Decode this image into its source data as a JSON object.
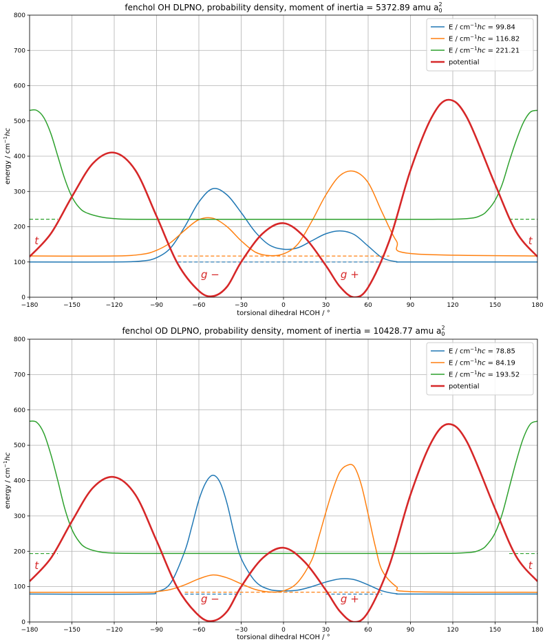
{
  "figure": {
    "description_units": "energy in cm^-1 hc, torsion angle in degrees"
  },
  "chart_data": [
    {
      "type": "line",
      "title_main": "fenchol OH DLPNO, probability density, moment of inertia = 5372.89 amu a",
      "title_sub": "0",
      "title_sup": "2",
      "xlabel": "torsional dihedral HCOH / °",
      "ylabel_main": "energy / cm",
      "ylabel_sup": "−1",
      "ylabel_tail": "hc",
      "xlim": [
        -180,
        180
      ],
      "ylim": [
        0,
        800
      ],
      "xticks": [
        -180,
        -150,
        -120,
        -90,
        -60,
        -30,
        0,
        30,
        60,
        90,
        120,
        150,
        180
      ],
      "xtick_labels": [
        "−180",
        "−150",
        "−120",
        "−90",
        "−60",
        "−30",
        "0",
        "30",
        "60",
        "90",
        "120",
        "150",
        "180"
      ],
      "yticks": [
        0,
        100,
        200,
        300,
        400,
        500,
        600,
        700,
        800
      ],
      "grid": true,
      "legend_position": "top-right",
      "legend": [
        {
          "prefix": "E / cm",
          "sup": "−1",
          "mid": "hc",
          "suffix": " = 99.84",
          "color": "#1f77b4",
          "key": "blue"
        },
        {
          "prefix": "E / cm",
          "sup": "−1",
          "mid": "hc",
          "suffix": " = 116.82",
          "color": "#ff7f0e",
          "key": "orange"
        },
        {
          "prefix": "E / cm",
          "sup": "−1",
          "mid": "hc",
          "suffix": " = 221.21",
          "color": "#2ca02c",
          "key": "green"
        },
        {
          "label": "potential",
          "color": "#d62728",
          "key": "potential"
        }
      ],
      "region_labels": [
        {
          "text": "t",
          "x": -175,
          "y": 150
        },
        {
          "text": "g −",
          "x": -52,
          "y": 55
        },
        {
          "text": "g +",
          "x": 47,
          "y": 55
        },
        {
          "text": "t",
          "x": 175,
          "y": 150
        }
      ],
      "potential": {
        "x": [
          -180,
          -165,
          -150,
          -135,
          -120,
          -105,
          -90,
          -75,
          -60,
          -50,
          -40,
          -30,
          -15,
          0,
          15,
          30,
          40,
          50,
          60,
          75,
          90,
          105,
          117,
          130,
          150,
          165,
          180
        ],
        "y": [
          115,
          180,
          285,
          380,
          410,
          360,
          230,
          95,
          18,
          3,
          30,
          100,
          180,
          210,
          170,
          90,
          30,
          0,
          28,
          160,
          360,
          510,
          560,
          510,
          320,
          185,
          115
        ]
      },
      "levels": [
        {
          "key": "blue",
          "energy": 99.84,
          "dashed_from": -75,
          "dashed_to": 70,
          "x": [
            -180,
            -120,
            -100,
            -90,
            -80,
            -70,
            -60,
            -50,
            -40,
            -30,
            -20,
            -10,
            0,
            10,
            20,
            30,
            40,
            50,
            60,
            70,
            80,
            90,
            180
          ],
          "y": [
            100,
            100,
            103,
            112,
            140,
            200,
            270,
            308,
            290,
            240,
            185,
            148,
            136,
            140,
            160,
            180,
            188,
            178,
            145,
            112,
            101,
            100,
            100
          ]
        },
        {
          "key": "orange",
          "energy": 116.82,
          "dashed_from": -75,
          "dashed_to": 75,
          "x": [
            -180,
            -120,
            -100,
            -90,
            -80,
            -70,
            -60,
            -50,
            -40,
            -30,
            -20,
            -10,
            0,
            10,
            20,
            30,
            40,
            50,
            60,
            70,
            80,
            90,
            180
          ],
          "y": [
            117,
            117,
            122,
            133,
            155,
            190,
            220,
            224,
            200,
            160,
            128,
            118,
            123,
            150,
            215,
            290,
            345,
            357,
            325,
            240,
            160,
            124,
            117
          ]
        },
        {
          "key": "green",
          "energy": 221.21,
          "dashed_from": -180,
          "dashed_to": -160,
          "dashed_from2": 160,
          "dashed_to2": 180,
          "x": [
            -180,
            -175,
            -170,
            -165,
            -160,
            -155,
            -150,
            -145,
            -140,
            -130,
            -120,
            -100,
            0,
            100,
            130,
            140,
            145,
            150,
            155,
            160,
            165,
            170,
            175,
            180
          ],
          "y": [
            530,
            530,
            510,
            465,
            400,
            335,
            285,
            255,
            240,
            228,
            223,
            221,
            221,
            221,
            223,
            232,
            248,
            275,
            320,
            385,
            445,
            495,
            525,
            530
          ]
        }
      ]
    },
    {
      "type": "line",
      "title_main": "fenchol OD DLPNO, probability density, moment of inertia = 10428.77 amu a",
      "title_sub": "0",
      "title_sup": "2",
      "xlabel": "torsional dihedral HCOH / °",
      "ylabel_main": "energy / cm",
      "ylabel_sup": "−1",
      "ylabel_tail": "hc",
      "xlim": [
        -180,
        180
      ],
      "ylim": [
        0,
        800
      ],
      "xticks": [
        -180,
        -150,
        -120,
        -90,
        -60,
        -30,
        0,
        30,
        60,
        90,
        120,
        150,
        180
      ],
      "xtick_labels": [
        "−180",
        "−150",
        "−120",
        "−90",
        "−60",
        "−30",
        "0",
        "30",
        "60",
        "90",
        "120",
        "150",
        "180"
      ],
      "yticks": [
        0,
        100,
        200,
        300,
        400,
        500,
        600,
        700,
        800
      ],
      "grid": true,
      "legend_position": "top-right",
      "legend": [
        {
          "prefix": "E / cm",
          "sup": "−1",
          "mid": "hc",
          "suffix": " = 78.85",
          "color": "#1f77b4",
          "key": "blue"
        },
        {
          "prefix": "E / cm",
          "sup": "−1",
          "mid": "hc",
          "suffix": " = 84.19",
          "color": "#ff7f0e",
          "key": "orange"
        },
        {
          "prefix": "E / cm",
          "sup": "−1",
          "mid": "hc",
          "suffix": " = 193.52",
          "color": "#2ca02c",
          "key": "green"
        },
        {
          "label": "potential",
          "color": "#d62728",
          "key": "potential"
        }
      ],
      "region_labels": [
        {
          "text": "t",
          "x": -175,
          "y": 150
        },
        {
          "text": "g −",
          "x": -52,
          "y": 55
        },
        {
          "text": "g +",
          "x": 47,
          "y": 55
        },
        {
          "text": "t",
          "x": 175,
          "y": 150
        }
      ],
      "potential": {
        "x": [
          -180,
          -165,
          -150,
          -135,
          -120,
          -105,
          -90,
          -75,
          -60,
          -50,
          -40,
          -30,
          -15,
          0,
          15,
          30,
          40,
          50,
          60,
          75,
          90,
          105,
          117,
          130,
          150,
          165,
          180
        ],
        "y": [
          115,
          180,
          285,
          380,
          410,
          360,
          230,
          95,
          18,
          3,
          30,
          100,
          180,
          210,
          170,
          90,
          30,
          0,
          28,
          160,
          360,
          510,
          560,
          510,
          320,
          185,
          115
        ]
      },
      "levels": [
        {
          "key": "blue",
          "energy": 78.85,
          "dashed_from": -70,
          "dashed_to": -30,
          "dashed_from2": 30,
          "dashed_to2": 70,
          "x": [
            -180,
            -100,
            -90,
            -80,
            -70,
            -65,
            -60,
            -55,
            -50,
            -45,
            -40,
            -35,
            -30,
            -20,
            -10,
            0,
            10,
            20,
            30,
            40,
            50,
            60,
            70,
            80,
            90,
            180
          ],
          "y": [
            79,
            79,
            85,
            110,
            200,
            270,
            345,
            395,
            415,
            395,
            335,
            250,
            180,
            115,
            92,
            88,
            90,
            100,
            113,
            122,
            120,
            105,
            88,
            80,
            79,
            79
          ]
        },
        {
          "key": "orange",
          "energy": 84.19,
          "dashed_from": -70,
          "dashed_to": 70,
          "x": [
            -180,
            -100,
            -90,
            -80,
            -70,
            -60,
            -50,
            -40,
            -30,
            -20,
            -10,
            0,
            10,
            20,
            25,
            30,
            35,
            40,
            45,
            50,
            55,
            60,
            65,
            70,
            80,
            90,
            180
          ],
          "y": [
            84,
            84,
            86,
            92,
            105,
            122,
            133,
            125,
            108,
            92,
            85,
            88,
            112,
            175,
            240,
            310,
            375,
            425,
            443,
            440,
            390,
            305,
            215,
            145,
            100,
            86,
            84
          ]
        },
        {
          "key": "green",
          "energy": 193.52,
          "dashed_from": -180,
          "dashed_to": -160,
          "dashed_from2": 160,
          "dashed_to2": 180,
          "x": [
            -180,
            -175,
            -170,
            -165,
            -160,
            -155,
            -150,
            -145,
            -140,
            -130,
            -120,
            -100,
            0,
            100,
            130,
            140,
            145,
            150,
            155,
            160,
            165,
            170,
            175,
            180
          ],
          "y": [
            568,
            565,
            535,
            475,
            400,
            320,
            262,
            228,
            210,
            198,
            195,
            194,
            194,
            194,
            196,
            205,
            222,
            252,
            305,
            380,
            455,
            520,
            560,
            568
          ]
        }
      ]
    }
  ]
}
